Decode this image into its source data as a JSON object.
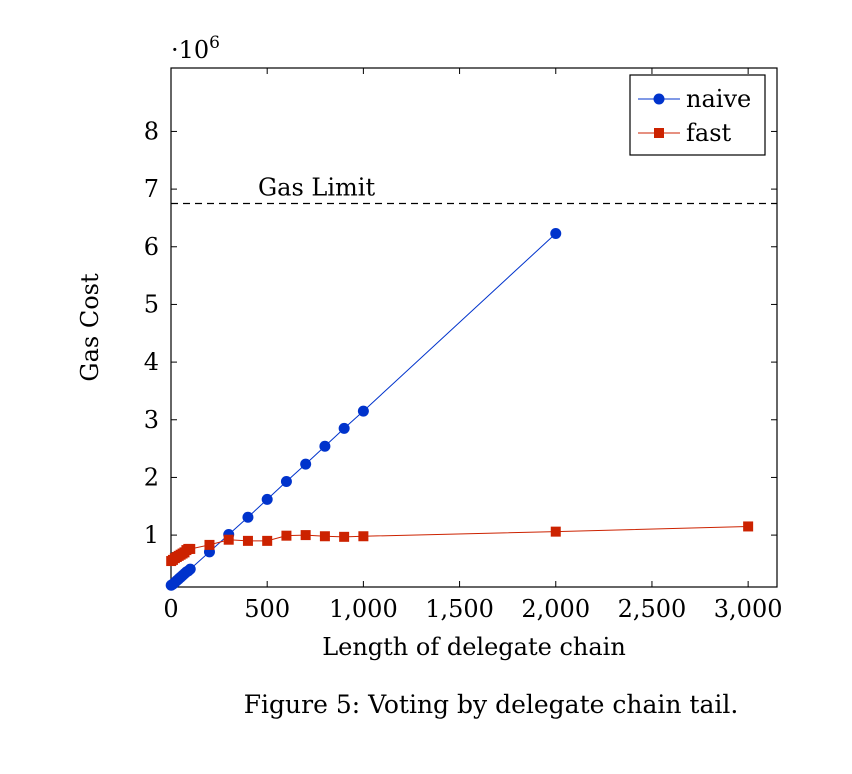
{
  "chart_data": {
    "type": "line",
    "xlabel": "Length of delegate chain",
    "ylabel": "Gas Cost",
    "y_multiplier_base": "·10",
    "y_multiplier_exponent": "6",
    "xlim": [
      0,
      3150
    ],
    "ylim": [
      0.1,
      9.1
    ],
    "x_ticks": [
      0,
      500,
      1000,
      1500,
      2000,
      2500,
      3000
    ],
    "x_tick_labels": [
      "0",
      "500",
      "1,000",
      "1,500",
      "2,000",
      "2,500",
      "3,000"
    ],
    "y_ticks": [
      1,
      2,
      3,
      4,
      5,
      6,
      7,
      8
    ],
    "y_tick_labels": [
      "1",
      "2",
      "3",
      "4",
      "5",
      "6",
      "7",
      "8"
    ],
    "grid": false,
    "legend_position": "top-right",
    "series": [
      {
        "name": "naive",
        "color": "#0033cc",
        "marker": "circle",
        "x": [
          1,
          10,
          20,
          30,
          40,
          50,
          60,
          70,
          80,
          90,
          100,
          200,
          300,
          400,
          500,
          600,
          700,
          800,
          900,
          1000,
          2000
        ],
        "y": [
          0.13,
          0.15,
          0.18,
          0.21,
          0.24,
          0.27,
          0.3,
          0.33,
          0.36,
          0.38,
          0.41,
          0.71,
          1.01,
          1.31,
          1.62,
          1.93,
          2.23,
          2.54,
          2.85,
          3.15,
          6.23
        ]
      },
      {
        "name": "fast",
        "color": "#cc2200",
        "marker": "square",
        "x": [
          1,
          10,
          20,
          30,
          40,
          50,
          60,
          70,
          80,
          90,
          100,
          200,
          300,
          400,
          500,
          600,
          700,
          800,
          900,
          1000,
          2000,
          3000
        ],
        "y": [
          0.55,
          0.57,
          0.6,
          0.62,
          0.64,
          0.66,
          0.68,
          0.7,
          0.74,
          0.76,
          0.76,
          0.83,
          0.92,
          0.9,
          0.9,
          0.99,
          1.0,
          0.98,
          0.97,
          0.98,
          1.06,
          1.15
        ]
      }
    ],
    "reference_line": {
      "label": "Gas Limit",
      "y": 6.75,
      "style": "dashed"
    }
  },
  "caption": "Figure 5: Voting by delegate chain tail."
}
